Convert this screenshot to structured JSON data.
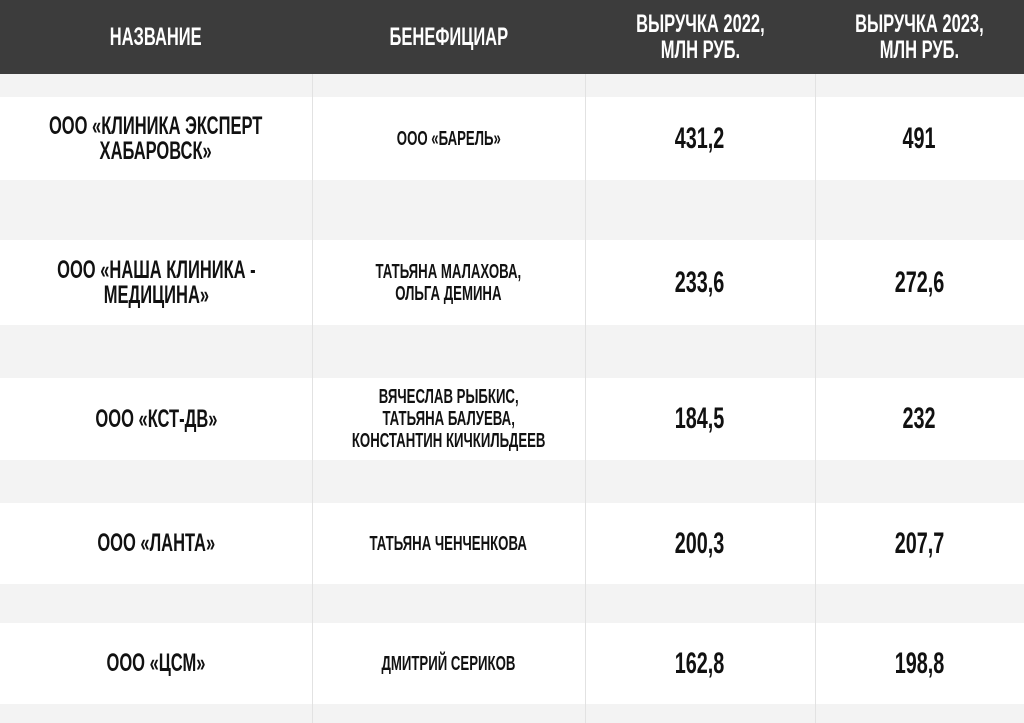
{
  "header": [
    "НАЗВАНИЕ",
    "БЕНЕФИЦИАР",
    "ВЫРУЧКА 2022,\nМЛН РУБ.",
    "ВЫРУЧКА 2023,\nМЛН РУБ."
  ],
  "rows": [
    {
      "name": "ООО «КЛИНИКА ЭКСПЕРТ\nХАБАРОВСК»",
      "beneficiary": "ООО «БАРЕЛЬ»",
      "rev2022": "431,2",
      "rev2023": "491"
    },
    {
      "name": "ООО «НАША КЛИНИКА -\nМЕДИЦИНА»",
      "beneficiary": "ТАТЬЯНА МАЛАХОВА,\nОЛЬГА ДЕМИНА",
      "rev2022": "233,6",
      "rev2023": "272,6"
    },
    {
      "name": "ООО «КСТ-ДВ»",
      "beneficiary": "ВЯЧЕСЛАВ РЫБКИС,\nТАТЬЯНА БАЛУЕВА,\nКОНСТАНТИН КИЧКИЛЬДЕЕВ",
      "rev2022": "184,5",
      "rev2023": "232"
    },
    {
      "name": "ООО «ЛАНТА»",
      "beneficiary": "ТАТЬЯНА ЧЕНЧЕНКОВА",
      "rev2022": "200,3",
      "rev2023": "207,7"
    },
    {
      "name": "ООО «ЦСМ»",
      "beneficiary": "ДМИТРИЙ СЕРИКОВ",
      "rev2022": "162,8",
      "rev2023": "198,8"
    }
  ],
  "colors": {
    "header_bg": "#3c3c3c",
    "row_bg": "#ffffff",
    "spacer_bg": "#f3f3f3"
  }
}
